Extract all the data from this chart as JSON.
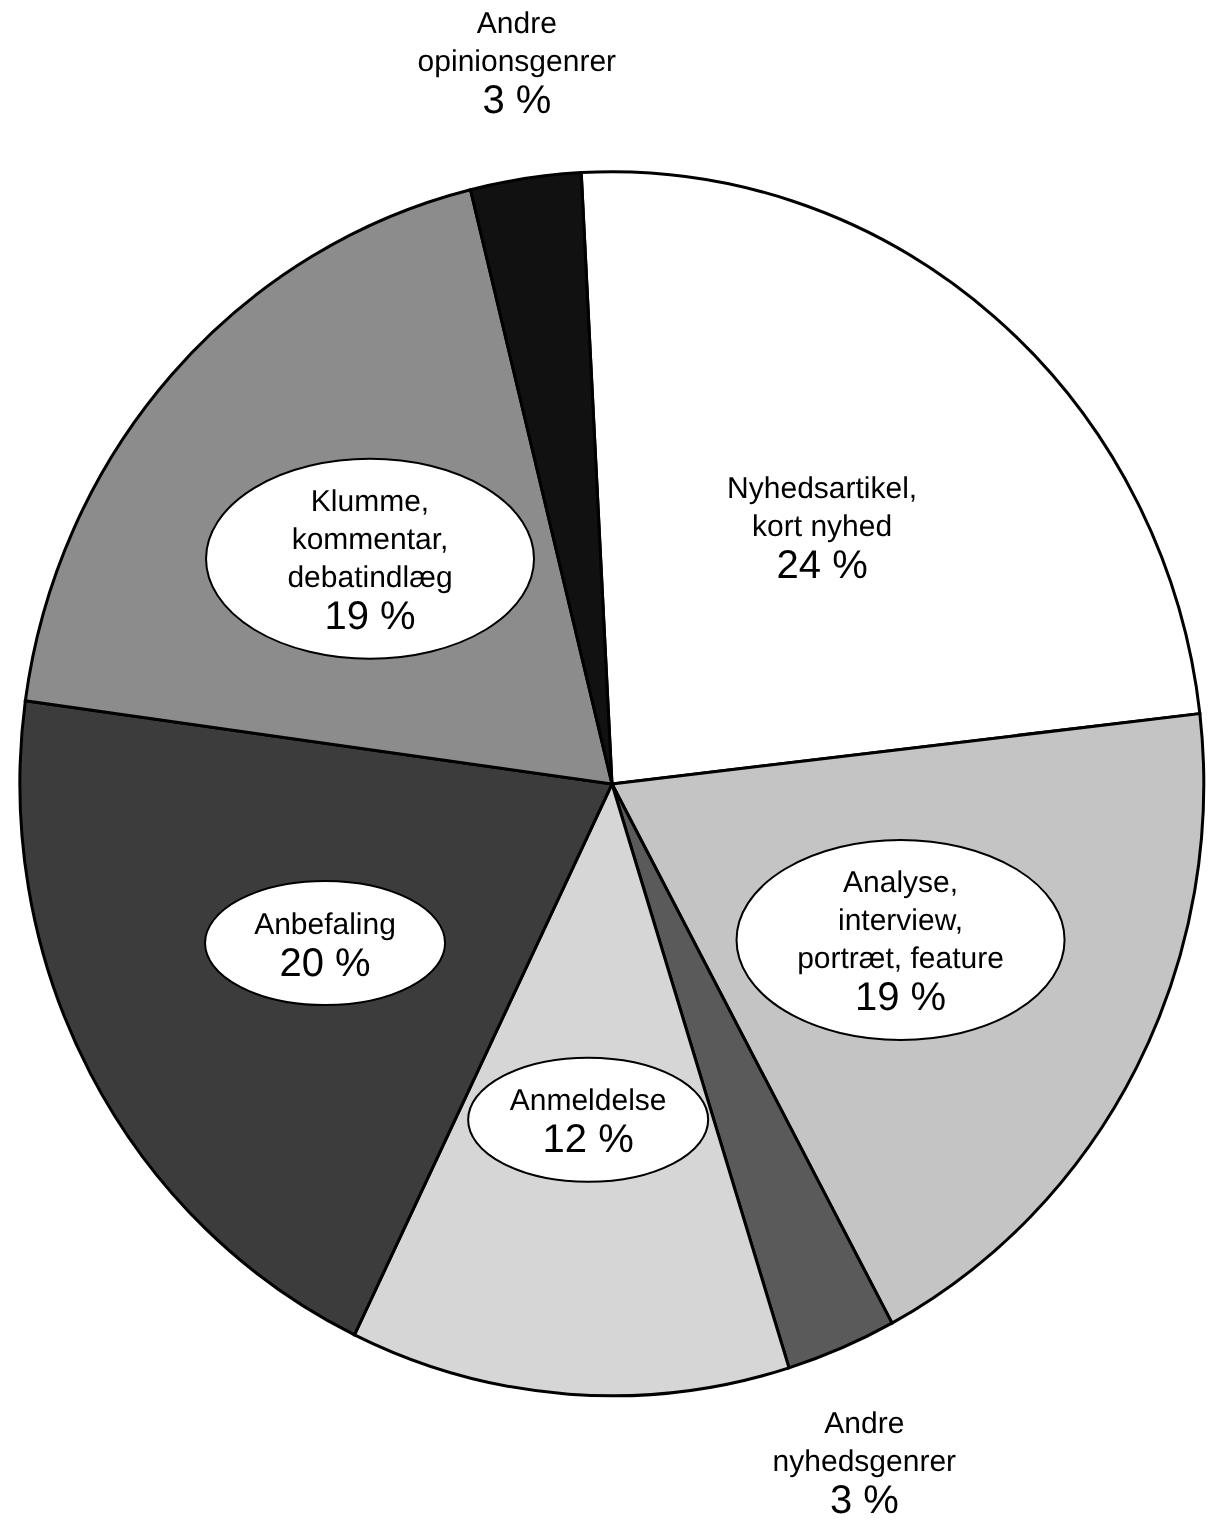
{
  "chart_data": {
    "type": "pie",
    "categories": [
      "Nyhedsartikel, kort nyhed",
      "Analyse, interview, portræt, feature",
      "Andre nyhedsgenrer",
      "Anmeldelse",
      "Anbefaling",
      "Klumme, kommentar, debatindlæg",
      "Andre opinionsgenrer"
    ],
    "values": [
      24,
      19,
      3,
      12,
      20,
      19,
      3
    ],
    "value_labels": [
      "24 %",
      "19 %",
      "3 %",
      "12 %",
      "20 %",
      "19 %",
      "3 %"
    ],
    "colors": [
      "#ffffff",
      "#c4c4c4",
      "#5a5a5a",
      "#d6d6d6",
      "#3c3c3c",
      "#8c8c8c",
      "#111111"
    ]
  }
}
